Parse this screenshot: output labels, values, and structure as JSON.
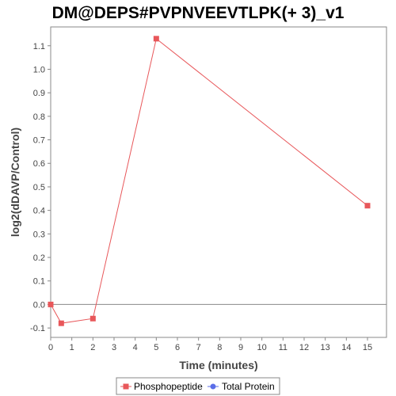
{
  "chart_data": {
    "type": "line",
    "title": "DM@DEPS#PVPNVEEVTLPK(+ 3)_v1",
    "xlabel": "Time (minutes)",
    "ylabel": "log2(dDAVP/Control)",
    "xlim": [
      0,
      15.9
    ],
    "ylim": [
      -0.14,
      1.18
    ],
    "x_ticks": [
      0,
      1,
      2,
      3,
      4,
      5,
      6,
      7,
      8,
      9,
      10,
      11,
      12,
      13,
      14,
      15
    ],
    "y_ticks": [
      -0.1,
      0.0,
      0.1,
      0.2,
      0.3,
      0.4,
      0.5,
      0.6,
      0.7,
      0.8,
      0.9,
      1.0,
      1.1
    ],
    "y_tick_labels": [
      "-0.1",
      "0.0",
      "0.1",
      "0.2",
      "0.3",
      "0.4",
      "0.5",
      "0.6",
      "0.7",
      "0.8",
      "0.9",
      "1.0",
      "1.1"
    ],
    "zero_line": true,
    "grid": false,
    "legend_position": "bottom",
    "series": [
      {
        "name": "Phosphopeptide",
        "color": "#e8575a",
        "marker": "square",
        "x": [
          0,
          0.5,
          2,
          5,
          15
        ],
        "y": [
          0.0,
          -0.08,
          -0.06,
          1.13,
          0.42
        ]
      },
      {
        "name": "Total Protein",
        "color": "#5b6ee8",
        "marker": "circle",
        "x": [],
        "y": []
      }
    ]
  }
}
